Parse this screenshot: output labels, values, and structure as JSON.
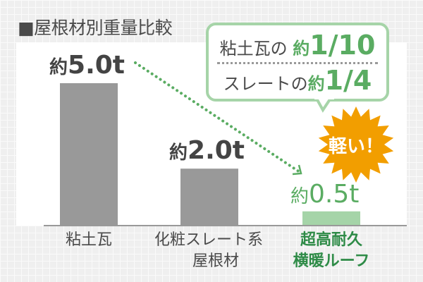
{
  "title": "■屋根材別重量比較",
  "chart_data": {
    "type": "bar",
    "categories": [
      "粘土瓦",
      "化粧スレート系屋根材",
      "超高耐久横暖ルーフ"
    ],
    "category_lines": [
      [
        "粘土瓦"
      ],
      [
        "化粧スレート系",
        "屋根材"
      ],
      [
        "超高耐久",
        "横暖ルーフ"
      ]
    ],
    "values": [
      5.0,
      2.0,
      0.5
    ],
    "unit": "t",
    "data_labels": [
      {
        "prefix": "約",
        "value": "5.0t"
      },
      {
        "prefix": "約",
        "value": "2.0t"
      },
      {
        "prefix": "約",
        "value": "0.5t"
      }
    ],
    "ylim": [
      0,
      5.3
    ],
    "grid": false,
    "colors": [
      "#999999",
      "#999999",
      "#a5d4a8"
    ],
    "label_colors": [
      "#444444",
      "#444444",
      "#5aac62"
    ],
    "highlight_color": "#2e8b47",
    "arrow_color": "#5aac62"
  },
  "callout": {
    "line1_text": "粘土瓦の",
    "line1_prefix": "約",
    "line1_value": "1/10",
    "line2_text": "スレートの",
    "line2_prefix": "約",
    "line2_value": "1/4",
    "border_color": "#a6d4a8"
  },
  "badge": {
    "text": "軽い！",
    "color": "#f29e00"
  }
}
